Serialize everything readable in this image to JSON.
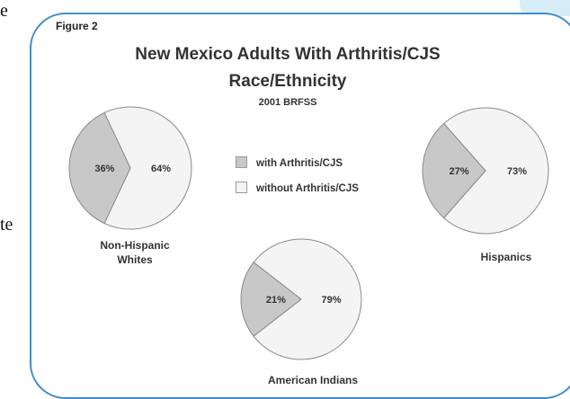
{
  "page_text": [
    "e",
    "te"
  ],
  "figure_label": "Figure 2",
  "chart_data": {
    "type": "pie",
    "title": "New Mexico Adults With Arthritis/CJS",
    "title_line2": "Race/Ethnicity",
    "subtitle": "2001 BRFSS",
    "legend": [
      {
        "label": "with Arthritis/CJS",
        "color": "#c8c8c8"
      },
      {
        "label": "without Arthritis/CJS",
        "color": "#f4f4f4"
      }
    ],
    "pies": [
      {
        "name": "Non-Hispanic Whites",
        "values": [
          36,
          64
        ],
        "labels": [
          "36%",
          "64%"
        ]
      },
      {
        "name": "Hispanics",
        "values": [
          27,
          73
        ],
        "labels": [
          "27%",
          "73%"
        ]
      },
      {
        "name": "American Indians",
        "values": [
          21,
          79
        ],
        "labels": [
          "21%",
          "79%"
        ]
      }
    ]
  }
}
